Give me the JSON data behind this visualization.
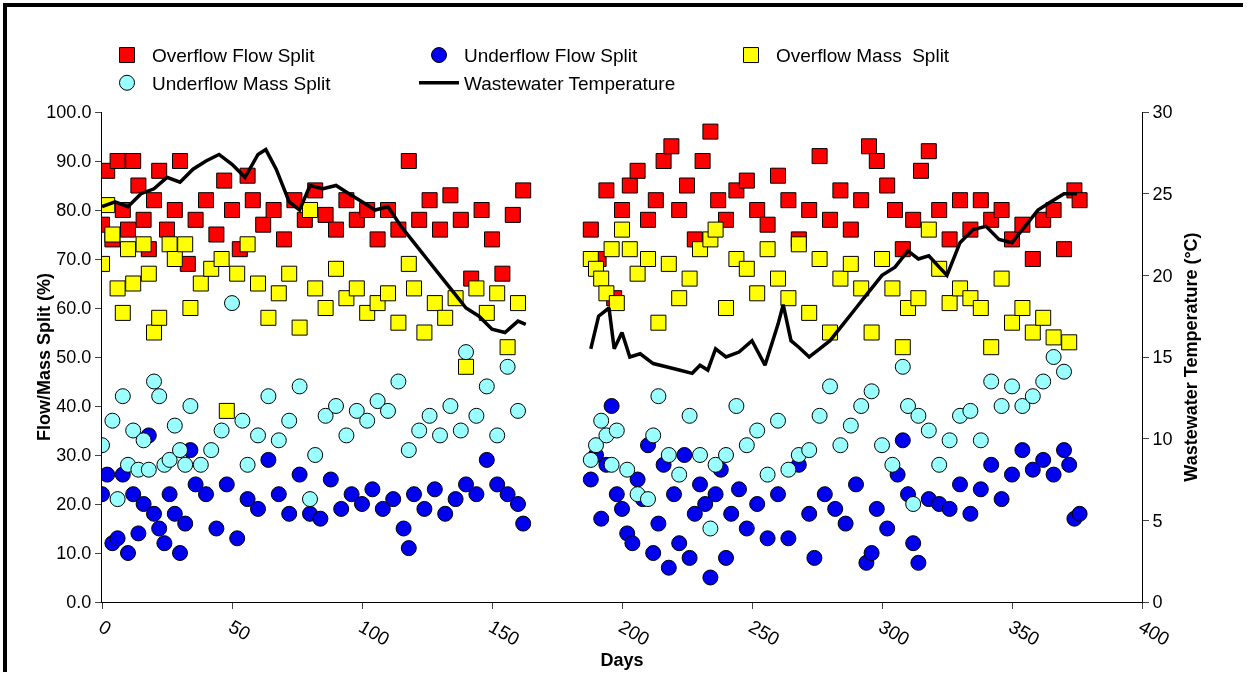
{
  "chart_data": {
    "type": "scatter",
    "xlabel": "Days",
    "ylabel": "Flow/Mass Split (%)",
    "y2label": "Wastewater Temperature (°C)",
    "xlim": [
      0,
      400
    ],
    "xticks": [
      0,
      50,
      100,
      150,
      200,
      250,
      300,
      350,
      400
    ],
    "ylim": [
      0,
      100
    ],
    "yticks": [
      {
        "value": 0,
        "label": "0.0"
      },
      {
        "value": 10,
        "label": "10.0"
      },
      {
        "value": 20,
        "label": "20.0"
      },
      {
        "value": 30,
        "label": "30.0"
      },
      {
        "value": 40,
        "label": "40.0"
      },
      {
        "value": 50,
        "label": "50.0"
      },
      {
        "value": 60,
        "label": "60.0"
      },
      {
        "value": 70,
        "label": "70.0"
      },
      {
        "value": 80,
        "label": "80.0"
      },
      {
        "value": 90,
        "label": "90.0"
      },
      {
        "value": 100,
        "label": "100.0"
      }
    ],
    "y2lim": [
      0,
      30
    ],
    "y2ticks": [
      0,
      5,
      10,
      15,
      20,
      25,
      30
    ],
    "grid": false,
    "legend": "top",
    "series": [
      {
        "name": "Overflow Flow Split",
        "marker": "square",
        "color": "#ff0000",
        "x": [
          0,
          2,
          4,
          6,
          8,
          10,
          12,
          14,
          16,
          18,
          20,
          22,
          25,
          28,
          30,
          33,
          36,
          40,
          44,
          47,
          50,
          53,
          56,
          58,
          62,
          66,
          70,
          74,
          78,
          82,
          86,
          90,
          94,
          98,
          102,
          106,
          110,
          114,
          118,
          122,
          126,
          130,
          134,
          138,
          142,
          146,
          150,
          154,
          158,
          162,
          188,
          191,
          194,
          197,
          200,
          203,
          206,
          210,
          213,
          216,
          219,
          222,
          225,
          228,
          231,
          234,
          237,
          240,
          244,
          248,
          252,
          256,
          260,
          264,
          268,
          272,
          276,
          280,
          284,
          288,
          292,
          295,
          298,
          302,
          305,
          308,
          312,
          315,
          318,
          322,
          326,
          330,
          334,
          338,
          342,
          346,
          350,
          354,
          358,
          362,
          366,
          370,
          374,
          376
        ],
        "values": [
          77,
          88,
          74,
          90,
          80,
          76,
          90,
          85,
          78,
          72,
          82,
          88,
          76,
          80,
          90,
          69,
          78,
          82,
          75,
          86,
          80,
          72,
          87,
          82,
          77,
          80,
          74,
          82,
          78,
          84,
          79,
          76,
          82,
          78,
          80,
          74,
          80,
          76,
          90,
          78,
          82,
          76,
          83,
          78,
          66,
          80,
          74,
          67,
          79,
          84,
          76,
          70,
          84,
          62,
          80,
          85,
          88,
          78,
          82,
          90,
          93,
          80,
          85,
          74,
          90,
          96,
          82,
          78,
          84,
          86,
          80,
          77,
          87,
          82,
          74,
          80,
          91,
          78,
          84,
          76,
          82,
          93,
          90,
          85,
          80,
          72,
          78,
          88,
          92,
          80,
          74,
          82,
          76,
          82,
          78,
          80,
          74,
          77,
          70,
          78,
          80,
          72,
          84,
          82
        ]
      },
      {
        "name": "Underflow Flow Split",
        "marker": "circle",
        "color": "#0000ee",
        "x": [
          0,
          2,
          4,
          6,
          8,
          10,
          12,
          14,
          16,
          18,
          20,
          22,
          24,
          26,
          28,
          30,
          32,
          34,
          36,
          40,
          44,
          48,
          52,
          56,
          60,
          64,
          68,
          72,
          76,
          80,
          84,
          88,
          92,
          96,
          100,
          104,
          108,
          112,
          116,
          118,
          120,
          124,
          128,
          132,
          136,
          140,
          144,
          148,
          152,
          156,
          160,
          162,
          188,
          190,
          192,
          194,
          196,
          198,
          200,
          202,
          204,
          206,
          208,
          210,
          212,
          214,
          216,
          218,
          220,
          222,
          224,
          226,
          228,
          230,
          232,
          234,
          236,
          238,
          240,
          242,
          245,
          248,
          252,
          256,
          260,
          264,
          268,
          272,
          274,
          278,
          282,
          286,
          290,
          294,
          296,
          298,
          302,
          306,
          308,
          310,
          312,
          314,
          318,
          322,
          326,
          330,
          334,
          338,
          342,
          346,
          350,
          354,
          358,
          362,
          366,
          370,
          372,
          374,
          376
        ],
        "values": [
          22,
          26,
          12,
          13,
          26,
          10,
          22,
          14,
          20,
          34,
          18,
          15,
          12,
          22,
          18,
          10,
          16,
          31,
          24,
          22,
          15,
          24,
          13,
          21,
          19,
          29,
          22,
          18,
          26,
          18,
          17,
          25,
          19,
          22,
          20,
          23,
          19,
          21,
          15,
          11,
          22,
          19,
          23,
          18,
          21,
          24,
          22,
          29,
          24,
          22,
          20,
          16,
          25,
          30,
          17,
          28,
          40,
          22,
          19,
          14,
          12,
          25,
          21,
          32,
          10,
          16,
          28,
          7,
          22,
          12,
          30,
          9,
          18,
          24,
          20,
          5,
          22,
          27,
          9,
          18,
          23,
          15,
          20,
          13,
          22,
          13,
          28,
          18,
          9,
          22,
          19,
          16,
          24,
          8,
          10,
          19,
          15,
          26,
          33,
          22,
          12,
          8,
          21,
          20,
          19,
          24,
          18,
          23,
          28,
          21,
          26,
          31,
          27,
          29,
          26,
          31,
          28,
          17,
          18
        ]
      },
      {
        "name": "Overflow Mass  Split",
        "marker": "square",
        "color": "#ffff00",
        "x": [
          0,
          2,
          4,
          6,
          8,
          10,
          12,
          16,
          18,
          20,
          22,
          26,
          28,
          32,
          34,
          38,
          42,
          46,
          48,
          52,
          56,
          60,
          64,
          68,
          72,
          76,
          80,
          82,
          86,
          90,
          94,
          98,
          102,
          106,
          110,
          114,
          118,
          120,
          124,
          128,
          132,
          136,
          140,
          144,
          148,
          152,
          156,
          160,
          188,
          190,
          192,
          194,
          196,
          198,
          200,
          203,
          206,
          210,
          214,
          218,
          222,
          226,
          230,
          234,
          236,
          240,
          244,
          248,
          252,
          256,
          260,
          264,
          268,
          272,
          276,
          280,
          284,
          288,
          292,
          296,
          300,
          304,
          308,
          310,
          314,
          318,
          322,
          326,
          330,
          334,
          338,
          342,
          346,
          350,
          354,
          358,
          362,
          366,
          372
        ],
        "values": [
          69,
          81,
          75,
          64,
          59,
          72,
          65,
          73,
          67,
          55,
          58,
          73,
          70,
          73,
          60,
          65,
          68,
          70,
          39,
          67,
          73,
          65,
          58,
          63,
          67,
          56,
          80,
          64,
          60,
          68,
          62,
          64,
          59,
          61,
          63,
          57,
          69,
          64,
          55,
          61,
          58,
          62,
          48,
          64,
          59,
          63,
          52,
          61,
          70,
          68,
          66,
          63,
          72,
          61,
          76,
          72,
          67,
          70,
          57,
          69,
          62,
          66,
          72,
          74,
          76,
          60,
          70,
          68,
          63,
          72,
          66,
          62,
          73,
          59,
          70,
          55,
          66,
          69,
          64,
          55,
          70,
          64,
          52,
          60,
          62,
          76,
          68,
          61,
          64,
          62,
          60,
          52,
          66,
          57,
          60,
          55,
          58,
          54,
          53
        ]
      },
      {
        "name": "Underflow Mass Split",
        "marker": "circle",
        "color": "#99ffff",
        "x": [
          0,
          4,
          6,
          8,
          10,
          12,
          14,
          16,
          18,
          20,
          22,
          24,
          26,
          28,
          30,
          32,
          34,
          38,
          42,
          46,
          50,
          54,
          56,
          60,
          64,
          68,
          72,
          76,
          80,
          82,
          86,
          90,
          94,
          98,
          102,
          106,
          110,
          114,
          118,
          122,
          126,
          130,
          134,
          138,
          140,
          144,
          148,
          152,
          156,
          160,
          188,
          190,
          192,
          194,
          196,
          198,
          202,
          206,
          210,
          212,
          214,
          218,
          222,
          226,
          230,
          234,
          236,
          240,
          244,
          248,
          252,
          256,
          260,
          264,
          268,
          272,
          276,
          280,
          284,
          288,
          292,
          296,
          300,
          304,
          308,
          310,
          312,
          314,
          318,
          322,
          326,
          330,
          334,
          338,
          342,
          346,
          350,
          354,
          358,
          362,
          366,
          370
        ],
        "values": [
          32,
          37,
          21,
          42,
          28,
          35,
          27,
          33,
          27,
          45,
          42,
          28,
          29,
          36,
          31,
          28,
          40,
          28,
          31,
          35,
          61,
          37,
          28,
          34,
          42,
          33,
          37,
          44,
          21,
          30,
          38,
          40,
          34,
          39,
          37,
          41,
          39,
          45,
          31,
          35,
          38,
          34,
          40,
          35,
          51,
          38,
          44,
          34,
          48,
          39,
          29,
          32,
          37,
          34,
          28,
          35,
          27,
          22,
          21,
          34,
          42,
          30,
          26,
          38,
          30,
          15,
          28,
          30,
          40,
          32,
          35,
          26,
          37,
          27,
          30,
          31,
          38,
          44,
          32,
          36,
          40,
          43,
          32,
          28,
          48,
          40,
          20,
          38,
          35,
          28,
          33,
          38,
          39,
          33,
          45,
          40,
          44,
          40,
          42,
          45,
          50,
          47
        ]
      },
      {
        "name": "Wastewater Temperature",
        "type": "line",
        "axis": "y2",
        "line_style": "solid",
        "color": "#000000",
        "x": [
          0,
          5,
          10,
          15,
          20,
          25,
          30,
          35,
          40,
          45,
          50,
          55,
          60,
          63,
          67,
          72,
          76,
          80,
          85,
          90,
          95,
          100,
          105,
          110,
          115,
          120,
          125,
          130,
          135,
          140,
          145,
          150,
          155,
          160,
          163,
          170,
          188,
          191,
          195,
          197,
          200,
          203,
          207,
          212,
          217,
          222,
          227,
          230,
          233,
          236,
          240,
          245,
          250,
          255,
          260,
          262,
          265,
          268,
          272,
          276,
          280,
          285,
          290,
          295,
          300,
          305,
          310,
          314,
          318,
          322,
          325,
          330,
          335,
          340,
          345,
          350,
          355,
          360,
          365,
          370,
          375
        ],
        "values": [
          24.2,
          24.5,
          24.2,
          25,
          25.3,
          26,
          25.7,
          26.5,
          27,
          27.4,
          26.8,
          26,
          27.4,
          27.7,
          26.5,
          24.5,
          24,
          25.5,
          25.3,
          25.5,
          25,
          24.5,
          24,
          24.2,
          23,
          22,
          21,
          20,
          19,
          18,
          17.5,
          16.7,
          16.5,
          17.2,
          17,
          null,
          15.5,
          17.5,
          18,
          15.5,
          16.5,
          15,
          15.2,
          14.6,
          14.4,
          14.2,
          14,
          14.5,
          14.2,
          15.5,
          15,
          15.3,
          16,
          14.5,
          17,
          18.2,
          16,
          15.6,
          15,
          15.5,
          16,
          17,
          18,
          19,
          20,
          20.5,
          21.5,
          21,
          21.2,
          20.5,
          20,
          22,
          22.8,
          23,
          22.2,
          22,
          23,
          24,
          24.5,
          25,
          25
        ]
      }
    ]
  }
}
